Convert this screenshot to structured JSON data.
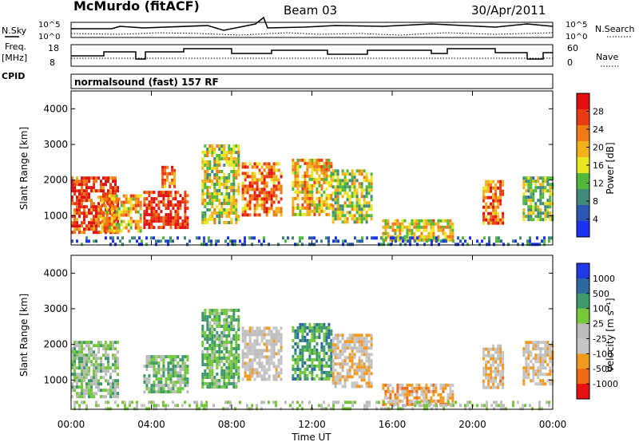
{
  "header": {
    "station": "McMurdo (fitACF)",
    "beam": "Beam 03",
    "date": "30/Apr/2011"
  },
  "top_panels": {
    "nsky_label": "N.Sky",
    "nsky_ticks": [
      "10^5",
      "10^0"
    ],
    "nsearch_label": "N.Search",
    "nsearch_ticks": [
      "10^5",
      "10^0"
    ],
    "freq_label_1": "Freq.",
    "freq_label_2": "[MHz]",
    "freq_ticks": [
      "18",
      "8"
    ],
    "nave_label": "Nave",
    "nave_ticks": [
      "60",
      "0"
    ],
    "cpid_label": "CPID",
    "cpid_text": "normalsound (fast) 157 RF"
  },
  "colors": {
    "power_scale": [
      "#1c32f0",
      "#2a58b4",
      "#3f8a78",
      "#52b83a",
      "#e8e820",
      "#f2b21a",
      "#f07a16",
      "#ea3a12",
      "#e21010"
    ],
    "velocity_scale": [
      "#e81010",
      "#f06a14",
      "#f29a20",
      "#c6c6c6",
      "#bcbcbc",
      "#74c83a",
      "#3e9a6a",
      "#2a6aa0",
      "#2038e8"
    ]
  },
  "chart_data": [
    {
      "type": "heatmap",
      "title": "",
      "xlabel": "",
      "ylabel": "Slant Range [km]",
      "xlim": [
        "00:00",
        "00:00"
      ],
      "ylim": [
        180,
        4500
      ],
      "x_ticks": [
        "00:00",
        "04:00",
        "08:00",
        "12:00",
        "16:00",
        "20:00",
        "00:00"
      ],
      "y_ticks": [
        "4000",
        "3000",
        "2000",
        "1000"
      ],
      "colorbar": {
        "label": "Power [dB]",
        "ticks": [
          "28",
          "24",
          "20",
          "16",
          "12",
          "8",
          "4"
        ],
        "range": [
          0,
          32
        ]
      },
      "regions": [
        {
          "t": [
            0.0,
            2.3
          ],
          "r": [
            500,
            2100
          ],
          "value": 27
        },
        {
          "t": [
            1.5,
            3.5
          ],
          "r": [
            600,
            1600
          ],
          "value": 20
        },
        {
          "t": [
            3.6,
            5.8
          ],
          "r": [
            700,
            1700
          ],
          "value": 29
        },
        {
          "t": [
            4.5,
            5.2
          ],
          "r": [
            1800,
            2400
          ],
          "value": 22
        },
        {
          "t": [
            6.5,
            8.3
          ],
          "r": [
            800,
            3000
          ],
          "value": 16
        },
        {
          "t": [
            8.5,
            10.5
          ],
          "r": [
            1000,
            2500
          ],
          "value": 23
        },
        {
          "t": [
            11.0,
            13.0
          ],
          "r": [
            1000,
            2600
          ],
          "value": 19
        },
        {
          "t": [
            13.0,
            15.0
          ],
          "r": [
            800,
            2300
          ],
          "value": 15
        },
        {
          "t": [
            15.5,
            19.0
          ],
          "r": [
            300,
            900
          ],
          "value": 18
        },
        {
          "t": [
            20.5,
            21.5
          ],
          "r": [
            800,
            2000
          ],
          "value": 24
        },
        {
          "t": [
            22.5,
            24.0
          ],
          "r": [
            900,
            2100
          ],
          "value": 14
        },
        {
          "t": [
            0.0,
            24.0
          ],
          "r": [
            180,
            420
          ],
          "value": 6
        }
      ]
    },
    {
      "type": "heatmap",
      "title": "",
      "xlabel": "Time UT",
      "ylabel": "Slant Range [km]",
      "xlim": [
        "00:00",
        "00:00"
      ],
      "ylim": [
        180,
        4500
      ],
      "x_ticks": [
        "00:00",
        "04:00",
        "08:00",
        "12:00",
        "16:00",
        "20:00",
        "00:00"
      ],
      "y_ticks": [
        "4000",
        "3000",
        "2000",
        "1000"
      ],
      "colorbar": {
        "label": "Velocity [m s⁻¹]",
        "ticks": [
          "1000",
          "500",
          "100",
          "25",
          "-25",
          "-100",
          "-500",
          "-1000"
        ],
        "range": [
          -1000,
          1000
        ]
      },
      "regions": [
        {
          "t": [
            0.0,
            2.3
          ],
          "r": [
            500,
            2100
          ],
          "value": 150
        },
        {
          "t": [
            3.6,
            5.8
          ],
          "r": [
            700,
            1700
          ],
          "value": 200
        },
        {
          "t": [
            6.5,
            8.3
          ],
          "r": [
            800,
            3000
          ],
          "value": 300
        },
        {
          "t": [
            8.5,
            10.5
          ],
          "r": [
            1000,
            2500
          ],
          "value": -150
        },
        {
          "t": [
            11.0,
            13.0
          ],
          "r": [
            1000,
            2600
          ],
          "value": 400
        },
        {
          "t": [
            13.0,
            15.0
          ],
          "r": [
            800,
            2300
          ],
          "value": -250
        },
        {
          "t": [
            15.5,
            19.0
          ],
          "r": [
            300,
            900
          ],
          "value": -400
        },
        {
          "t": [
            20.5,
            21.5
          ],
          "r": [
            800,
            2000
          ],
          "value": -300
        },
        {
          "t": [
            22.5,
            24.0
          ],
          "r": [
            900,
            2100
          ],
          "value": -250
        },
        {
          "t": [
            0.0,
            24.0
          ],
          "r": [
            180,
            420
          ],
          "value": 60
        }
      ]
    }
  ]
}
